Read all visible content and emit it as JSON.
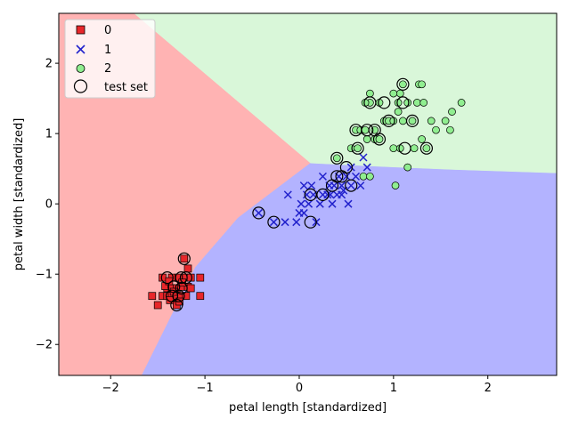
{
  "chart_data": {
    "type": "scatter",
    "title": "",
    "xlabel": "petal length [standardized]",
    "ylabel": "petal width [standardized]",
    "xlim": [
      -2.55,
      2.73
    ],
    "ylim": [
      -2.44,
      2.71
    ],
    "xticks": [
      -2,
      -1,
      0,
      1,
      2
    ],
    "yticks": [
      -2,
      -1,
      0,
      1,
      2
    ],
    "grid": false,
    "legend_position": "top-left",
    "decision_regions": [
      {
        "class": "0",
        "color": "#ffb3b3",
        "polygon": [
          [
            -2.55,
            2.71
          ],
          [
            -1.75,
            2.71
          ],
          [
            0.12,
            0.58
          ],
          [
            -0.65,
            -0.2
          ],
          [
            -1.1,
            -0.9
          ],
          [
            -1.67,
            -2.44
          ],
          [
            -2.55,
            -2.44
          ]
        ]
      },
      {
        "class": "1",
        "color": "#b3b3ff",
        "polygon": [
          [
            -1.67,
            -2.44
          ],
          [
            -1.1,
            -0.9
          ],
          [
            -0.65,
            -0.2
          ],
          [
            0.12,
            0.58
          ],
          [
            0.9,
            0.53
          ],
          [
            1.6,
            0.49
          ],
          [
            2.73,
            0.44
          ],
          [
            2.73,
            -2.44
          ]
        ]
      },
      {
        "class": "2",
        "color": "#d9f7d9",
        "polygon": [
          [
            -1.75,
            2.71
          ],
          [
            2.73,
            2.71
          ],
          [
            2.73,
            0.44
          ],
          [
            1.6,
            0.49
          ],
          [
            0.9,
            0.53
          ],
          [
            0.12,
            0.58
          ]
        ]
      }
    ],
    "series": [
      {
        "name": "0",
        "marker": "square",
        "color": "#e8262a",
        "points": [
          [
            -1.56,
            -1.31
          ],
          [
            -1.5,
            -1.44
          ],
          [
            -1.45,
            -1.31
          ],
          [
            -1.4,
            -1.31
          ],
          [
            -1.4,
            -1.2
          ],
          [
            -1.35,
            -1.31
          ],
          [
            -1.35,
            -1.2
          ],
          [
            -1.35,
            -1.05
          ],
          [
            -1.3,
            -1.31
          ],
          [
            -1.3,
            -1.44
          ],
          [
            -1.3,
            -1.2
          ],
          [
            -1.28,
            -1.05
          ],
          [
            -1.25,
            -1.31
          ],
          [
            -1.25,
            -1.18
          ],
          [
            -1.22,
            -0.78
          ],
          [
            -1.2,
            -1.31
          ],
          [
            -1.2,
            -1.05
          ],
          [
            -1.18,
            -1.18
          ],
          [
            -1.18,
            -0.92
          ],
          [
            -1.15,
            -1.05
          ],
          [
            -1.15,
            -1.2
          ],
          [
            -1.05,
            -1.31
          ],
          [
            -1.05,
            -1.05
          ],
          [
            -1.37,
            -1.37
          ],
          [
            -1.42,
            -1.17
          ],
          [
            -1.33,
            -1.25
          ],
          [
            -1.27,
            -1.39
          ],
          [
            -1.24,
            -1.12
          ],
          [
            -1.45,
            -1.05
          ],
          [
            -1.38,
            -1.1
          ]
        ]
      },
      {
        "name": "1",
        "marker": "x",
        "color": "#2222cc",
        "points": [
          [
            -0.43,
            -0.13
          ],
          [
            -0.27,
            -0.26
          ],
          [
            -0.15,
            -0.26
          ],
          [
            -0.12,
            0.13
          ],
          [
            -0.03,
            -0.26
          ],
          [
            0.0,
            -0.13
          ],
          [
            0.02,
            0.0
          ],
          [
            0.05,
            -0.13
          ],
          [
            0.05,
            0.26
          ],
          [
            0.08,
            0.13
          ],
          [
            0.1,
            0.0
          ],
          [
            0.13,
            0.26
          ],
          [
            0.15,
            0.13
          ],
          [
            0.18,
            -0.26
          ],
          [
            0.22,
            0.0
          ],
          [
            0.25,
            0.13
          ],
          [
            0.25,
            0.39
          ],
          [
            0.3,
            0.13
          ],
          [
            0.32,
            0.26
          ],
          [
            0.35,
            0.0
          ],
          [
            0.37,
            0.26
          ],
          [
            0.4,
            0.13
          ],
          [
            0.42,
            0.39
          ],
          [
            0.45,
            0.26
          ],
          [
            0.45,
            0.13
          ],
          [
            0.5,
            0.39
          ],
          [
            0.52,
            0.0
          ],
          [
            0.55,
            0.26
          ],
          [
            0.55,
            0.52
          ],
          [
            0.6,
            0.39
          ],
          [
            0.65,
            0.26
          ],
          [
            0.68,
            0.66
          ],
          [
            0.72,
            0.52
          ],
          [
            0.33,
            0.13
          ],
          [
            0.47,
            0.19
          ]
        ]
      },
      {
        "name": "2",
        "marker": "circle",
        "color": "#90ee90",
        "points": [
          [
            0.4,
            0.65
          ],
          [
            0.55,
            0.79
          ],
          [
            0.6,
            1.05
          ],
          [
            0.62,
            0.79
          ],
          [
            0.65,
            1.05
          ],
          [
            0.68,
            0.39
          ],
          [
            0.7,
            1.05
          ],
          [
            0.72,
            0.92
          ],
          [
            0.75,
            1.57
          ],
          [
            0.75,
            1.44
          ],
          [
            0.75,
            0.39
          ],
          [
            0.8,
            1.05
          ],
          [
            0.8,
            0.92
          ],
          [
            0.85,
            1.44
          ],
          [
            0.9,
            1.18
          ],
          [
            0.95,
            1.18
          ],
          [
            1.0,
            0.79
          ],
          [
            1.0,
            1.18
          ],
          [
            1.05,
            1.31
          ],
          [
            1.05,
            1.44
          ],
          [
            1.07,
            1.57
          ],
          [
            1.07,
            0.79
          ],
          [
            1.1,
            1.18
          ],
          [
            1.1,
            1.7
          ],
          [
            1.15,
            1.44
          ],
          [
            1.2,
            1.18
          ],
          [
            1.22,
            0.79
          ],
          [
            1.25,
            1.44
          ],
          [
            1.27,
            1.7
          ],
          [
            1.3,
            0.92
          ],
          [
            1.32,
            1.44
          ],
          [
            1.35,
            0.79
          ],
          [
            1.4,
            1.18
          ],
          [
            1.45,
            1.05
          ],
          [
            1.55,
            1.18
          ],
          [
            1.6,
            1.05
          ],
          [
            1.62,
            1.31
          ],
          [
            1.72,
            1.44
          ],
          [
            1.02,
            0.26
          ],
          [
            1.15,
            0.52
          ],
          [
            0.85,
            0.92
          ],
          [
            1.0,
            1.57
          ],
          [
            0.7,
            1.44
          ],
          [
            1.3,
            1.7
          ]
        ]
      }
    ],
    "test_set": {
      "name": "test set",
      "points": [
        [
          -1.22,
          -0.78
        ],
        [
          -1.4,
          -1.05
        ],
        [
          -1.35,
          -1.31
        ],
        [
          -1.28,
          -1.31
        ],
        [
          -1.3,
          -1.44
        ],
        [
          -1.25,
          -1.2
        ],
        [
          -1.2,
          -1.05
        ],
        [
          -1.25,
          -1.05
        ],
        [
          -1.33,
          -1.18
        ],
        [
          -0.43,
          -0.13
        ],
        [
          -0.27,
          -0.26
        ],
        [
          0.12,
          0.13
        ],
        [
          0.12,
          -0.26
        ],
        [
          0.25,
          0.13
        ],
        [
          0.35,
          0.26
        ],
        [
          0.4,
          0.39
        ],
        [
          0.45,
          0.39
        ],
        [
          0.5,
          0.52
        ],
        [
          0.55,
          0.26
        ],
        [
          0.4,
          0.65
        ],
        [
          0.6,
          1.05
        ],
        [
          0.62,
          0.79
        ],
        [
          0.72,
          1.05
        ],
        [
          0.75,
          1.44
        ],
        [
          0.8,
          1.05
        ],
        [
          0.85,
          0.92
        ],
        [
          0.9,
          1.44
        ],
        [
          0.95,
          1.18
        ],
        [
          1.1,
          1.44
        ],
        [
          1.1,
          1.7
        ],
        [
          1.2,
          1.18
        ],
        [
          1.12,
          0.79
        ],
        [
          1.35,
          0.79
        ]
      ]
    },
    "legend": [
      {
        "label": "0",
        "marker": "square"
      },
      {
        "label": "1",
        "marker": "x"
      },
      {
        "label": "2",
        "marker": "circle"
      },
      {
        "label": "test set",
        "marker": "ring"
      }
    ]
  }
}
